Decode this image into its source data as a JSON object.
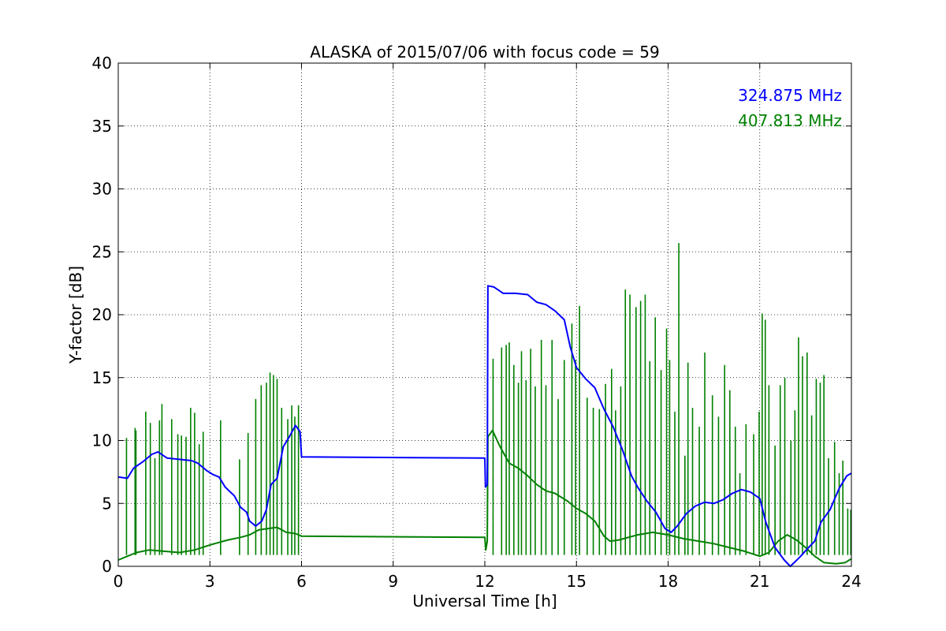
{
  "chart_data": {
    "type": "line",
    "title": "ALASKA of 2015/07/06 with focus code = 59",
    "xlabel": "Universal Time [h]",
    "ylabel": "Y-factor [dB]",
    "xlim": [
      0,
      24
    ],
    "ylim": [
      0,
      40
    ],
    "xticks": [
      0,
      3,
      6,
      9,
      12,
      15,
      18,
      21,
      24
    ],
    "yticks": [
      0,
      5,
      10,
      15,
      20,
      25,
      30,
      35,
      40
    ],
    "grid": true,
    "legend_position": "top-right",
    "series": [
      {
        "name": "324.875 MHz",
        "color": "#0000ff",
        "points": [
          [
            0.0,
            7.1
          ],
          [
            0.3,
            7.0
          ],
          [
            0.5,
            7.8
          ],
          [
            0.8,
            8.3
          ],
          [
            1.1,
            8.9
          ],
          [
            1.3,
            9.1
          ],
          [
            1.6,
            8.6
          ],
          [
            2.0,
            8.5
          ],
          [
            2.4,
            8.4
          ],
          [
            2.6,
            8.2
          ],
          [
            2.9,
            7.6
          ],
          [
            3.1,
            7.3
          ],
          [
            3.3,
            7.1
          ],
          [
            3.5,
            6.3
          ],
          [
            3.8,
            5.6
          ],
          [
            4.0,
            4.7
          ],
          [
            4.2,
            4.3
          ],
          [
            4.3,
            3.6
          ],
          [
            4.5,
            3.2
          ],
          [
            4.7,
            3.6
          ],
          [
            4.85,
            4.5
          ],
          [
            5.0,
            6.5
          ],
          [
            5.2,
            7.0
          ],
          [
            5.4,
            9.5
          ],
          [
            5.6,
            10.3
          ],
          [
            5.8,
            11.2
          ],
          [
            5.95,
            10.7
          ],
          [
            6.0,
            8.7
          ],
          [
            12.0,
            8.6
          ],
          [
            12.02,
            6.3
          ],
          [
            12.08,
            6.5
          ],
          [
            12.1,
            22.3
          ],
          [
            12.3,
            22.2
          ],
          [
            12.6,
            21.7
          ],
          [
            13.0,
            21.7
          ],
          [
            13.4,
            21.6
          ],
          [
            13.7,
            21.0
          ],
          [
            14.0,
            20.8
          ],
          [
            14.3,
            20.3
          ],
          [
            14.6,
            19.6
          ],
          [
            14.8,
            17.4
          ],
          [
            15.0,
            15.8
          ],
          [
            15.3,
            14.9
          ],
          [
            15.6,
            14.2
          ],
          [
            15.9,
            12.5
          ],
          [
            16.2,
            11.1
          ],
          [
            16.5,
            9.3
          ],
          [
            16.8,
            7.2
          ],
          [
            17.0,
            6.3
          ],
          [
            17.3,
            5.2
          ],
          [
            17.6,
            4.3
          ],
          [
            17.9,
            3.0
          ],
          [
            18.1,
            2.7
          ],
          [
            18.3,
            3.2
          ],
          [
            18.6,
            4.2
          ],
          [
            18.9,
            4.8
          ],
          [
            19.2,
            5.1
          ],
          [
            19.5,
            5.0
          ],
          [
            19.8,
            5.3
          ],
          [
            20.1,
            5.8
          ],
          [
            20.4,
            6.1
          ],
          [
            20.7,
            5.9
          ],
          [
            21.0,
            5.4
          ],
          [
            21.2,
            3.5
          ],
          [
            21.5,
            1.5
          ],
          [
            21.8,
            0.5
          ],
          [
            22.0,
            0.0
          ],
          [
            22.3,
            0.7
          ],
          [
            22.6,
            1.5
          ],
          [
            22.8,
            2.0
          ],
          [
            23.0,
            3.5
          ],
          [
            23.3,
            4.5
          ],
          [
            23.6,
            6.2
          ],
          [
            23.85,
            7.2
          ],
          [
            24.0,
            7.4
          ]
        ]
      },
      {
        "name": "407.813 MHz",
        "color": "#008000",
        "points": [
          [
            0.0,
            0.5
          ],
          [
            0.3,
            0.8
          ],
          [
            0.6,
            1.1
          ],
          [
            1.0,
            1.3
          ],
          [
            1.5,
            1.2
          ],
          [
            2.0,
            1.1
          ],
          [
            2.5,
            1.3
          ],
          [
            3.0,
            1.7
          ],
          [
            3.3,
            1.9
          ],
          [
            3.6,
            2.1
          ],
          [
            4.0,
            2.3
          ],
          [
            4.3,
            2.5
          ],
          [
            4.6,
            2.9
          ],
          [
            4.9,
            3.0
          ],
          [
            5.2,
            3.1
          ],
          [
            5.5,
            2.7
          ],
          [
            5.8,
            2.6
          ],
          [
            6.0,
            2.4
          ],
          [
            12.0,
            2.3
          ],
          [
            12.03,
            1.3
          ],
          [
            12.08,
            2.0
          ],
          [
            12.1,
            10.3
          ],
          [
            12.25,
            10.8
          ],
          [
            12.5,
            9.5
          ],
          [
            12.8,
            8.2
          ],
          [
            13.1,
            7.8
          ],
          [
            13.4,
            7.2
          ],
          [
            13.7,
            6.5
          ],
          [
            14.0,
            6.0
          ],
          [
            14.3,
            5.8
          ],
          [
            14.7,
            5.2
          ],
          [
            15.0,
            4.6
          ],
          [
            15.3,
            4.2
          ],
          [
            15.6,
            3.6
          ],
          [
            15.9,
            2.4
          ],
          [
            16.1,
            2.0
          ],
          [
            16.4,
            2.1
          ],
          [
            16.7,
            2.3
          ],
          [
            17.0,
            2.5
          ],
          [
            17.5,
            2.7
          ],
          [
            18.0,
            2.5
          ],
          [
            18.5,
            2.2
          ],
          [
            19.0,
            2.0
          ],
          [
            19.5,
            1.8
          ],
          [
            20.0,
            1.5
          ],
          [
            20.5,
            1.2
          ],
          [
            21.0,
            0.8
          ],
          [
            21.3,
            1.1
          ],
          [
            21.6,
            2.0
          ],
          [
            21.9,
            2.5
          ],
          [
            22.2,
            2.1
          ],
          [
            22.5,
            1.5
          ],
          [
            22.8,
            0.8
          ],
          [
            23.1,
            0.3
          ],
          [
            23.5,
            0.2
          ],
          [
            23.8,
            0.3
          ],
          [
            24.0,
            0.6
          ]
        ],
        "spikes": [
          [
            0.27,
            10.2
          ],
          [
            0.55,
            11.0
          ],
          [
            0.58,
            10.8
          ],
          [
            0.9,
            12.3
          ],
          [
            1.05,
            11.4
          ],
          [
            1.2,
            8.6
          ],
          [
            1.35,
            11.6
          ],
          [
            1.43,
            12.9
          ],
          [
            1.75,
            11.7
          ],
          [
            1.95,
            10.5
          ],
          [
            2.07,
            10.4
          ],
          [
            2.22,
            10.3
          ],
          [
            2.37,
            12.6
          ],
          [
            2.5,
            12.2
          ],
          [
            2.65,
            9.7
          ],
          [
            2.78,
            10.7
          ],
          [
            3.35,
            11.6
          ],
          [
            3.97,
            8.5
          ],
          [
            4.25,
            10.6
          ],
          [
            4.5,
            13.3
          ],
          [
            4.68,
            14.4
          ],
          [
            4.85,
            14.6
          ],
          [
            4.97,
            15.4
          ],
          [
            5.08,
            15.2
          ],
          [
            5.2,
            14.9
          ],
          [
            5.35,
            12.6
          ],
          [
            5.55,
            11.7
          ],
          [
            5.68,
            12.8
          ],
          [
            5.78,
            11.9
          ],
          [
            5.9,
            12.8
          ],
          [
            12.27,
            16.5
          ],
          [
            12.55,
            17.4
          ],
          [
            12.7,
            17.6
          ],
          [
            12.8,
            17.8
          ],
          [
            12.95,
            16.0
          ],
          [
            13.1,
            14.6
          ],
          [
            13.2,
            17.1
          ],
          [
            13.35,
            14.8
          ],
          [
            13.5,
            17.3
          ],
          [
            13.65,
            14.3
          ],
          [
            13.85,
            18.0
          ],
          [
            14.0,
            14.4
          ],
          [
            14.2,
            18.0
          ],
          [
            14.4,
            13.3
          ],
          [
            14.6,
            16.4
          ],
          [
            14.85,
            19.3
          ],
          [
            14.97,
            16.4
          ],
          [
            15.1,
            20.7
          ],
          [
            15.35,
            13.4
          ],
          [
            15.55,
            12.6
          ],
          [
            15.75,
            12.5
          ],
          [
            15.95,
            14.5
          ],
          [
            16.15,
            15.7
          ],
          [
            16.28,
            12.4
          ],
          [
            16.45,
            14.3
          ],
          [
            16.6,
            22.0
          ],
          [
            16.75,
            21.6
          ],
          [
            16.95,
            20.6
          ],
          [
            17.1,
            21.1
          ],
          [
            17.25,
            21.6
          ],
          [
            17.4,
            16.3
          ],
          [
            17.58,
            19.8
          ],
          [
            17.77,
            15.6
          ],
          [
            17.95,
            18.9
          ],
          [
            18.05,
            16.4
          ],
          [
            18.22,
            12.3
          ],
          [
            18.35,
            25.7
          ],
          [
            18.55,
            8.8
          ],
          [
            18.65,
            16.2
          ],
          [
            18.8,
            12.6
          ],
          [
            19.02,
            11.1
          ],
          [
            19.2,
            17.0
          ],
          [
            19.45,
            13.6
          ],
          [
            19.65,
            11.9
          ],
          [
            19.85,
            16.0
          ],
          [
            20.02,
            14.0
          ],
          [
            20.2,
            11.1
          ],
          [
            20.35,
            7.4
          ],
          [
            20.55,
            11.3
          ],
          [
            20.8,
            10.5
          ],
          [
            20.98,
            12.3
          ],
          [
            21.08,
            20.1
          ],
          [
            21.18,
            19.6
          ],
          [
            21.3,
            14.4
          ],
          [
            21.5,
            9.6
          ],
          [
            21.67,
            14.4
          ],
          [
            21.82,
            15.0
          ],
          [
            22.02,
            10.0
          ],
          [
            22.15,
            12.4
          ],
          [
            22.27,
            18.2
          ],
          [
            22.4,
            16.7
          ],
          [
            22.55,
            17.0
          ],
          [
            22.7,
            12.0
          ],
          [
            22.85,
            14.9
          ],
          [
            22.98,
            14.6
          ],
          [
            23.1,
            15.2
          ],
          [
            23.25,
            8.6
          ],
          [
            23.45,
            9.9
          ],
          [
            23.6,
            7.4
          ],
          [
            23.72,
            8.4
          ],
          [
            23.88,
            4.6
          ],
          [
            23.98,
            4.5
          ]
        ]
      }
    ]
  }
}
